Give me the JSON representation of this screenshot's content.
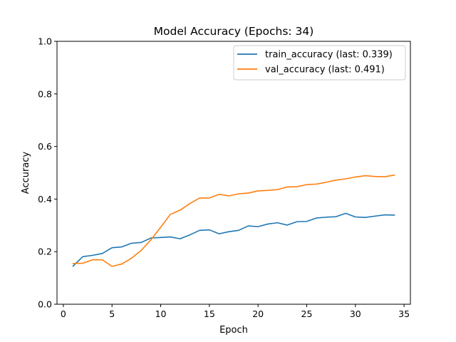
{
  "chart_data": {
    "type": "line",
    "title": "Model Accuracy (Epochs: 34)",
    "xlabel": "Epoch",
    "ylabel": "Accuracy",
    "xlim": [
      -0.65,
      35.65
    ],
    "ylim": [
      0.0,
      1.0
    ],
    "xticks": [
      0,
      5,
      10,
      15,
      20,
      25,
      30,
      35
    ],
    "xtick_labels": [
      "0",
      "5",
      "10",
      "15",
      "20",
      "25",
      "30",
      "35"
    ],
    "yticks": [
      0.0,
      0.2,
      0.4,
      0.6,
      0.8,
      1.0
    ],
    "ytick_labels": [
      "0.0",
      "0.2",
      "0.4",
      "0.6",
      "0.8",
      "1.0"
    ],
    "grid": false,
    "legend_position": "top-right",
    "x": [
      1,
      2,
      3,
      4,
      5,
      6,
      7,
      8,
      9,
      10,
      11,
      12,
      13,
      14,
      15,
      16,
      17,
      18,
      19,
      20,
      21,
      22,
      23,
      24,
      25,
      26,
      27,
      28,
      29,
      30,
      31,
      32,
      33,
      34
    ],
    "series": [
      {
        "name": "train_accuracy (last: 0.339)",
        "color": "#1f77b4",
        "values": [
          0.145,
          0.181,
          0.186,
          0.193,
          0.215,
          0.218,
          0.232,
          0.235,
          0.252,
          0.254,
          0.256,
          0.249,
          0.264,
          0.281,
          0.283,
          0.268,
          0.276,
          0.281,
          0.298,
          0.295,
          0.305,
          0.31,
          0.301,
          0.314,
          0.315,
          0.328,
          0.331,
          0.333,
          0.346,
          0.332,
          0.33,
          0.335,
          0.34,
          0.339
        ]
      },
      {
        "name": "val_accuracy (last: 0.491)",
        "color": "#ff7f0e",
        "values": [
          0.155,
          0.156,
          0.169,
          0.169,
          0.144,
          0.153,
          0.175,
          0.205,
          0.245,
          0.293,
          0.342,
          0.358,
          0.383,
          0.404,
          0.404,
          0.418,
          0.412,
          0.42,
          0.423,
          0.431,
          0.433,
          0.436,
          0.446,
          0.447,
          0.455,
          0.457,
          0.464,
          0.472,
          0.477,
          0.484,
          0.489,
          0.486,
          0.485,
          0.491
        ]
      }
    ]
  }
}
